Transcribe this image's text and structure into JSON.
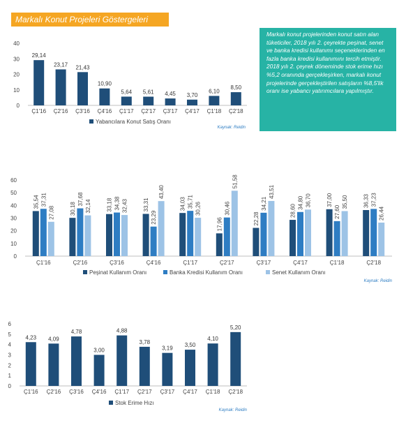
{
  "page_title": "Markalı Konut Projeleri Göstergeleri",
  "info_text": "Markalı konut projelerinden konut satın alan tüketiciler, 2018 yılı 2. çeyrekte peşinat, senet ve banka kredisi kullanımı seçeneklerinden en fazla banka kredisi kullanımını tercih etmiştir. 2018 yılı 2. çeyrek döneminde stok erime hızı %5,2 oranında gerçekleşirken, markalı konut projelerinde gerçekleştirilen satışların %8,5'lik oranı ise yabancı yatırımcılara yapılmıştır.",
  "colors": {
    "dark": "#1f4e79",
    "mid": "#2e7dc3",
    "light": "#9dc3e6",
    "accent": "#f5a623",
    "box": "#27b3a5",
    "source": "#2e7dc3"
  },
  "chart_data": [
    {
      "type": "bar",
      "categories": [
        "Ç1'16",
        "Ç2'16",
        "Ç3'16",
        "Ç4'16",
        "Ç1'17",
        "Ç2'17",
        "Ç3'17",
        "Ç4'17",
        "Ç1'18",
        "Ç2'18"
      ],
      "series": [
        {
          "name": "Yabancılara Konut Satış Oranı",
          "values": [
            29.14,
            23.17,
            21.43,
            10.9,
            5.64,
            5.61,
            4.45,
            3.7,
            6.1,
            8.5
          ],
          "labels": [
            "29,14",
            "23,17",
            "21,43",
            "10,90",
            "5,64",
            "5,61",
            "4,45",
            "3,70",
            "6,10",
            "8,50"
          ]
        }
      ],
      "yticks": [
        "0",
        "10",
        "20",
        "30",
        "40"
      ],
      "ylim": [
        0,
        40
      ],
      "source": "Kaynak: Reidin",
      "grid": false,
      "legend": "bottom"
    },
    {
      "type": "bar",
      "categories": [
        "Ç1'16",
        "Ç2'16",
        "Ç3'16",
        "Ç4'16",
        "Ç1'17",
        "Ç2'17",
        "Ç3'17",
        "Ç4'17",
        "Ç1'18",
        "Ç2'18"
      ],
      "series": [
        {
          "name": "Peşinat Kullanım Oranı",
          "values": [
            35.54,
            30.18,
            33.18,
            33.31,
            34.03,
            17.96,
            22.28,
            28.6,
            37.0,
            36.33
          ],
          "labels": [
            "35,54",
            "30,18",
            "33,18",
            "33,31",
            "34,03",
            "17,96",
            "22,28",
            "28,60",
            "37,00",
            "36,33"
          ]
        },
        {
          "name": "Banka Kredisi Kullanım Oranı",
          "values": [
            37.31,
            37.68,
            34.38,
            23.29,
            35.71,
            30.46,
            34.21,
            34.8,
            27.6,
            37.23
          ],
          "labels": [
            "37,31",
            "37,68",
            "34,38",
            "23,29",
            "35,71",
            "30,46",
            "34,21",
            "34,80",
            "27,60",
            "37,23"
          ]
        },
        {
          "name": "Senet Kullanım Oranı",
          "values": [
            27.08,
            32.14,
            32.43,
            43.4,
            30.26,
            51.58,
            43.51,
            36.7,
            35.5,
            26.44
          ],
          "labels": [
            "27,08",
            "32,14",
            "32,43",
            "43,40",
            "30,26",
            "51,58",
            "43,51",
            "36,70",
            "35,50",
            "26,44"
          ]
        }
      ],
      "yticks": [
        "0",
        "10",
        "20",
        "30",
        "40",
        "50",
        "60"
      ],
      "ylim": [
        0,
        60
      ],
      "source": "Kaynak: Reidin",
      "grid": false,
      "legend": "bottom"
    },
    {
      "type": "bar",
      "categories": [
        "Ç1'16",
        "Ç2'16",
        "Ç3'16",
        "Ç4'16",
        "Ç1'17",
        "Ç2'17",
        "Ç3'17",
        "Ç4'17",
        "Ç1'18",
        "Ç2'18"
      ],
      "series": [
        {
          "name": "Stok Erime Hızı",
          "values": [
            4.23,
            4.09,
            4.78,
            3.0,
            4.88,
            3.78,
            3.19,
            3.5,
            4.1,
            5.2
          ],
          "labels": [
            "4,23",
            "4,09",
            "4,78",
            "3,00",
            "4,88",
            "3,78",
            "3,19",
            "3,50",
            "4,10",
            "5,20"
          ]
        }
      ],
      "yticks": [
        "0",
        "1",
        "2",
        "3",
        "4",
        "5",
        "6"
      ],
      "ylim": [
        0,
        6
      ],
      "source": "Kaynak: Reidin",
      "grid": false,
      "legend": "bottom"
    }
  ]
}
